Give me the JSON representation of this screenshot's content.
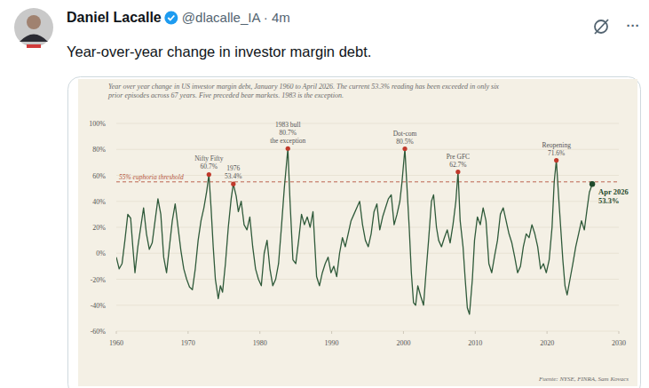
{
  "post": {
    "author": "Daniel Lacalle",
    "meta": "@dlacalle_IA · 4m",
    "menu": "···",
    "text": "Year-over-year change in investor margin debt."
  },
  "chart_data": {
    "type": "line",
    "title": "Year over year change in US investor margin debt, January 1960 to April 2026. The current 53.3% reading has been exceeded in only six prior episodes across 67 years. Five preceded bear markets. 1983 is the exception.",
    "source": "Fuente: NYSE, FINRA, Sam Kovacs",
    "grid": true,
    "xlim": [
      1960,
      2030
    ],
    "xticks": [
      1960,
      1970,
      1980,
      1990,
      2000,
      2010,
      2020,
      2030
    ],
    "ylim": [
      -60,
      100
    ],
    "yticks": [
      {
        "value": -60,
        "label": "-60%"
      },
      {
        "value": -40,
        "label": "-40%"
      },
      {
        "value": -20,
        "label": "-20%"
      },
      {
        "value": 0,
        "label": "0%"
      },
      {
        "value": 20,
        "label": "20%"
      },
      {
        "value": 40,
        "label": "40%"
      },
      {
        "value": 60,
        "label": "60%"
      },
      {
        "value": 80,
        "label": "80%"
      },
      {
        "value": 100,
        "label": "100%"
      }
    ],
    "threshold": {
      "value": 55,
      "label": "55% euphoria threshold",
      "color": "#b5563f"
    },
    "x": [
      1960,
      1960.4,
      1960.8,
      1961.2,
      1961.6,
      1962.0,
      1962.3,
      1962.6,
      1963.0,
      1963.4,
      1963.8,
      1964.2,
      1964.6,
      1965.0,
      1965.4,
      1965.8,
      1966.2,
      1966.6,
      1967.0,
      1967.4,
      1967.8,
      1968.2,
      1968.6,
      1969.0,
      1969.4,
      1969.8,
      1970.2,
      1970.6,
      1971.0,
      1971.4,
      1971.8,
      1972.2,
      1972.6,
      1972.9,
      1973.2,
      1973.5,
      1973.8,
      1974.2,
      1974.5,
      1974.8,
      1975.2,
      1975.6,
      1976.0,
      1976.3,
      1976.7,
      1977.0,
      1977.4,
      1977.8,
      1978.2,
      1978.6,
      1979.0,
      1979.4,
      1979.8,
      1980.2,
      1980.6,
      1981.0,
      1981.4,
      1981.8,
      1982.2,
      1982.6,
      1983.0,
      1983.4,
      1983.9,
      1984.2,
      1984.6,
      1985.0,
      1985.4,
      1985.8,
      1986.2,
      1986.6,
      1987.0,
      1987.4,
      1987.9,
      1988.3,
      1988.7,
      1989.1,
      1989.5,
      1989.9,
      1990.3,
      1990.7,
      1991.1,
      1991.5,
      1991.9,
      1992.3,
      1992.7,
      1993.1,
      1993.5,
      1993.9,
      1994.3,
      1994.7,
      1995.1,
      1995.5,
      1995.9,
      1996.3,
      1996.7,
      1997.1,
      1997.5,
      1997.9,
      1998.3,
      1998.7,
      1999.1,
      1999.5,
      1999.8,
      2000.2,
      2000.5,
      2000.8,
      2001.1,
      2001.4,
      2001.7,
      2002.0,
      2002.4,
      2002.8,
      2003.1,
      2003.5,
      2003.9,
      2004.2,
      2004.6,
      2004.9,
      2005.3,
      2005.7,
      2006.1,
      2006.5,
      2006.9,
      2007.3,
      2007.6,
      2007.9,
      2008.3,
      2008.6,
      2008.9,
      2009.2,
      2009.6,
      2009.9,
      2010.3,
      2010.7,
      2011.1,
      2011.5,
      2011.9,
      2012.3,
      2012.7,
      2013.1,
      2013.5,
      2013.9,
      2014.3,
      2014.7,
      2015.1,
      2015.5,
      2015.9,
      2016.3,
      2016.7,
      2017.1,
      2017.5,
      2017.9,
      2018.3,
      2018.7,
      2019.1,
      2019.5,
      2019.9,
      2020.3,
      2020.7,
      2021.0,
      2021.3,
      2021.6,
      2021.9,
      2022.2,
      2022.5,
      2022.8,
      2023.2,
      2023.6,
      2024.0,
      2024.4,
      2024.8,
      2025.2,
      2025.6,
      2025.9,
      2026.3
    ],
    "series": [
      {
        "color": "#2f5a3a",
        "values": [
          -3,
          -12,
          -8,
          10,
          30,
          27,
          5,
          -15,
          5,
          20,
          35,
          15,
          3,
          8,
          25,
          42,
          30,
          -3,
          -15,
          5,
          25,
          38,
          20,
          2,
          -12,
          -20,
          -26,
          -28,
          -12,
          10,
          25,
          35,
          48,
          60.7,
          35,
          5,
          -20,
          -35,
          -25,
          -30,
          -8,
          20,
          42,
          53.4,
          44,
          32,
          40,
          22,
          18,
          28,
          5,
          -12,
          -20,
          -25,
          0,
          10,
          -12,
          -25,
          -20,
          -8,
          20,
          50,
          80.7,
          40,
          -5,
          -8,
          10,
          30,
          22,
          28,
          20,
          32,
          -18,
          -25,
          -15,
          -8,
          -3,
          -15,
          -10,
          -18,
          0,
          12,
          5,
          15,
          25,
          30,
          35,
          40,
          22,
          10,
          5,
          15,
          32,
          38,
          18,
          28,
          35,
          42,
          45,
          22,
          30,
          40,
          55,
          80.5,
          50,
          20,
          -15,
          -38,
          -40,
          -25,
          -33,
          -40,
          -18,
          10,
          40,
          45,
          20,
          10,
          5,
          12,
          18,
          8,
          22,
          40,
          62.7,
          25,
          5,
          -20,
          -42,
          -47,
          -20,
          10,
          28,
          22,
          35,
          25,
          -8,
          -15,
          -2,
          10,
          30,
          35,
          25,
          15,
          8,
          -3,
          -15,
          -10,
          5,
          15,
          12,
          22,
          15,
          5,
          -12,
          -8,
          -15,
          -5,
          20,
          55,
          71.6,
          45,
          20,
          -5,
          -25,
          -32,
          -20,
          -8,
          5,
          15,
          25,
          18,
          35,
          47,
          53.3
        ]
      }
    ],
    "annotations": [
      {
        "label": "Nifty Fifty",
        "x": 1972.9,
        "y": 60.7,
        "value_label": "60.7%",
        "color": "#c0392b"
      },
      {
        "label": "1976",
        "x": 1976.3,
        "y": 53.4,
        "value_label": "53.4%",
        "color": "#c0392b"
      },
      {
        "label": "1983 bull",
        "x": 1983.9,
        "y": 80.7,
        "value_label": "80.7%",
        "note": "the exception",
        "color": "#c0392b"
      },
      {
        "label": "Dot-com",
        "x": 2000.2,
        "y": 80.5,
        "value_label": "80.5%",
        "color": "#c0392b"
      },
      {
        "label": "Pre GFC",
        "x": 2007.6,
        "y": 62.7,
        "value_label": "62.7%",
        "color": "#c0392b"
      },
      {
        "label": "Reopening",
        "x": 2021.3,
        "y": 71.6,
        "value_label": "71.6%",
        "color": "#c0392b"
      }
    ],
    "current": {
      "label": "Apr 2026",
      "x": 2026.3,
      "y": 53.3,
      "value_label": "53.3%",
      "color": "#1f4a2c"
    }
  }
}
